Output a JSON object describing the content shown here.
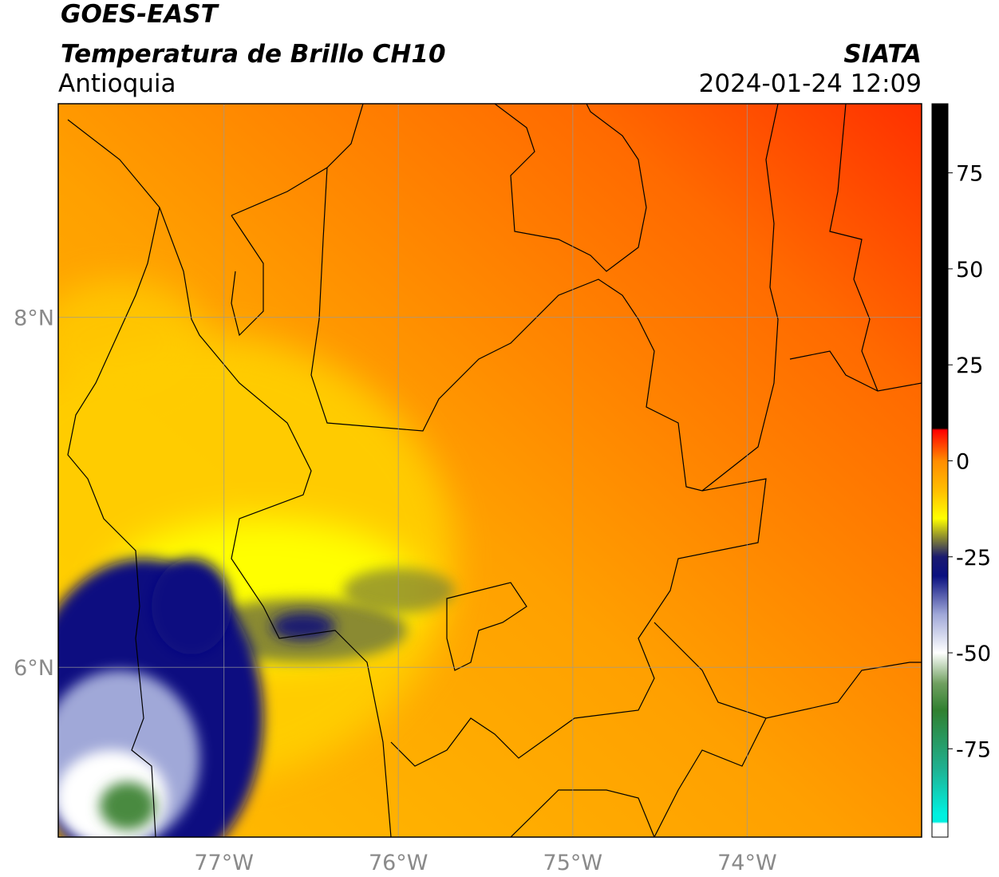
{
  "map": {
    "title": "GOES-EAST",
    "subtitle": "Temperatura de Brillo CH10",
    "region": "Antioquia",
    "source": "SIATA",
    "datetime": "2024-01-24 12:09",
    "xlim": [
      -77.95,
      -73
    ],
    "ylim": [
      5.03,
      9.22
    ],
    "xticks": [
      {
        "value": -77,
        "label": "77°W"
      },
      {
        "value": -76,
        "label": "76°W"
      },
      {
        "value": -75,
        "label": "75°W"
      },
      {
        "value": -74,
        "label": "74°W"
      }
    ],
    "yticks": [
      {
        "value": 8,
        "label": "8°N"
      },
      {
        "value": 6,
        "label": "6°N"
      }
    ],
    "grid": true,
    "colorbar": {
      "ylim": [
        -98,
        93
      ],
      "yticks": [
        75,
        50,
        25,
        0,
        -25,
        -50,
        -75
      ],
      "stops": [
        {
          "value": 93,
          "color": "#000000"
        },
        {
          "value": 8.5,
          "color": "#000000"
        },
        {
          "value": 8,
          "color": "#ff0000"
        },
        {
          "value": 0,
          "color": "#ff8c00"
        },
        {
          "value": -8,
          "color": "#ffc000"
        },
        {
          "value": -15,
          "color": "#ffff00"
        },
        {
          "value": -20,
          "color": "#8a8a30"
        },
        {
          "value": -25,
          "color": "#1a1a70"
        },
        {
          "value": -30,
          "color": "#0a1080"
        },
        {
          "value": -40,
          "color": "#a0a8d8"
        },
        {
          "value": -50,
          "color": "#ffffff"
        },
        {
          "value": -58,
          "color": "#70a060"
        },
        {
          "value": -65,
          "color": "#308030"
        },
        {
          "value": -80,
          "color": "#20b090"
        },
        {
          "value": -92,
          "color": "#00f0e0"
        },
        {
          "value": -94,
          "color": "#00f0e0"
        },
        {
          "value": -94.5,
          "color": "#ffffff"
        },
        {
          "value": -98,
          "color": "#ffffff"
        }
      ]
    }
  }
}
